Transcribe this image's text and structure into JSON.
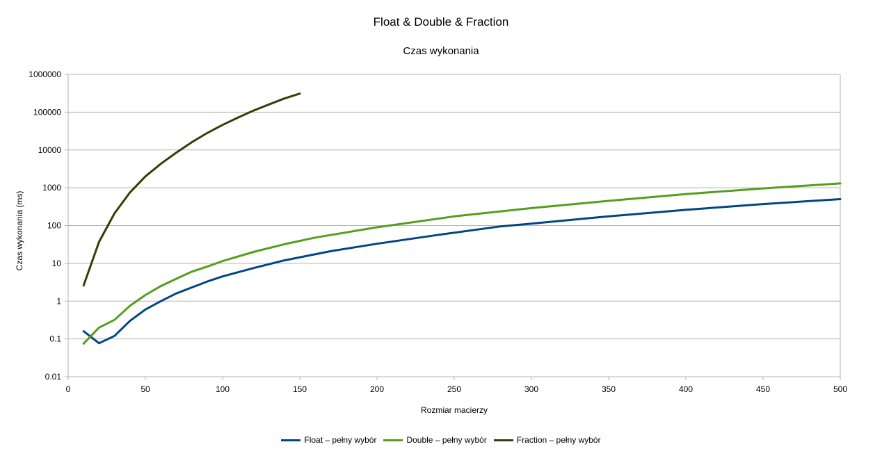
{
  "chart_data": {
    "type": "line",
    "title": "Float & Double & Fraction",
    "subtitle": "Czas wykonania",
    "xlabel": "Rozmiar macierzy",
    "ylabel": "Czas wykonania (ms)",
    "xlim": [
      0,
      500
    ],
    "ylim": [
      0.01,
      1000000
    ],
    "yscale": "log",
    "grid": "horizontal",
    "legend_position": "bottom",
    "x_ticks": [
      "0",
      "50",
      "100",
      "150",
      "200",
      "250",
      "300",
      "350",
      "400",
      "450",
      "500"
    ],
    "y_ticks": [
      "0.01",
      "0.1",
      "1",
      "10",
      "100",
      "1000",
      "10000",
      "100000",
      "1000000"
    ],
    "series": [
      {
        "name": "Float – pełny wybór",
        "color": "#004586",
        "x": [
          10,
          20,
          30,
          40,
          50,
          60,
          70,
          80,
          90,
          100,
          120,
          140,
          170,
          200,
          240,
          280,
          300,
          350,
          400,
          450,
          500
        ],
        "y": [
          0.16,
          0.077,
          0.12,
          0.3,
          0.6,
          1.0,
          1.6,
          2.3,
          3.3,
          4.5,
          7.5,
          12,
          21,
          33,
          57,
          95,
          112,
          175,
          260,
          370,
          500
        ]
      },
      {
        "name": "Double – pełny wybór",
        "color": "#579d1c",
        "x": [
          10,
          20,
          30,
          40,
          50,
          60,
          70,
          80,
          90,
          100,
          120,
          140,
          160,
          200,
          250,
          300,
          350,
          400,
          450,
          500
        ],
        "y": [
          0.075,
          0.2,
          0.32,
          0.75,
          1.45,
          2.5,
          3.9,
          6.0,
          8.2,
          11.5,
          20,
          32,
          48,
          90,
          175,
          290,
          450,
          680,
          960,
          1300
        ]
      },
      {
        "name": "Fraction – pełny wybór",
        "color": "#314004",
        "x": [
          10,
          20,
          30,
          40,
          50,
          60,
          70,
          80,
          90,
          100,
          110,
          120,
          130,
          140,
          150
        ],
        "y": [
          2.6,
          37,
          210,
          750,
          2000,
          4300,
          8500,
          16000,
          28000,
          46000,
          72000,
          110000,
          160000,
          230000,
          310000
        ]
      }
    ]
  }
}
